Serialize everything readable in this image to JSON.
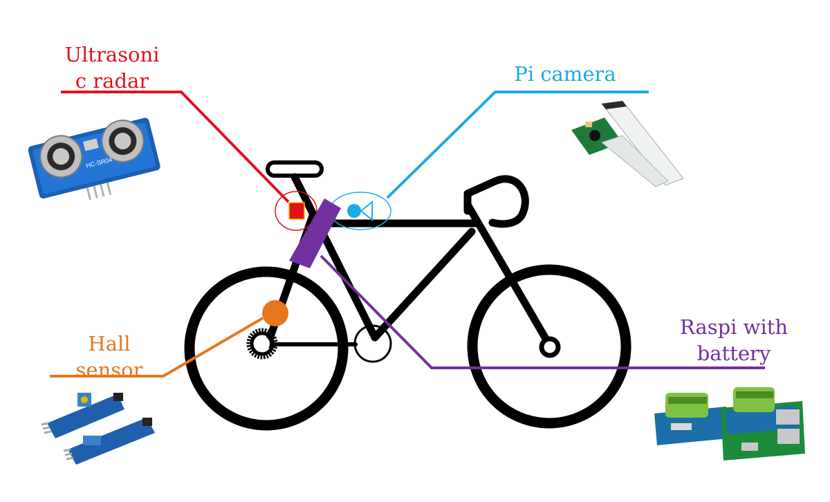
{
  "colors": {
    "frame": "#000000",
    "ultrasonic": "#e3101a",
    "camera": "#1aace4",
    "raspi": "#7030a0",
    "hall": "#e8761c",
    "background": "#ffffff"
  },
  "labels": {
    "ultrasonic_line1": "Ultrasoni",
    "ultrasonic_line2": "c radar",
    "camera": "Pi camera",
    "raspi_line1": "Raspi with",
    "raspi_line2": "battery",
    "hall_line1": "Hall",
    "hall_line2": "sensor"
  },
  "icons": {
    "ultrasonic_module": "hc-sr04-ultrasonic-sensor-photo",
    "camera_module": "raspberry-pi-camera-module-photo",
    "raspi_module": "raspberry-pi-battery-hat-photo",
    "hall_module": "hall-sensor-module-photo",
    "module_label_ultrasonic": "HC-SR04"
  }
}
